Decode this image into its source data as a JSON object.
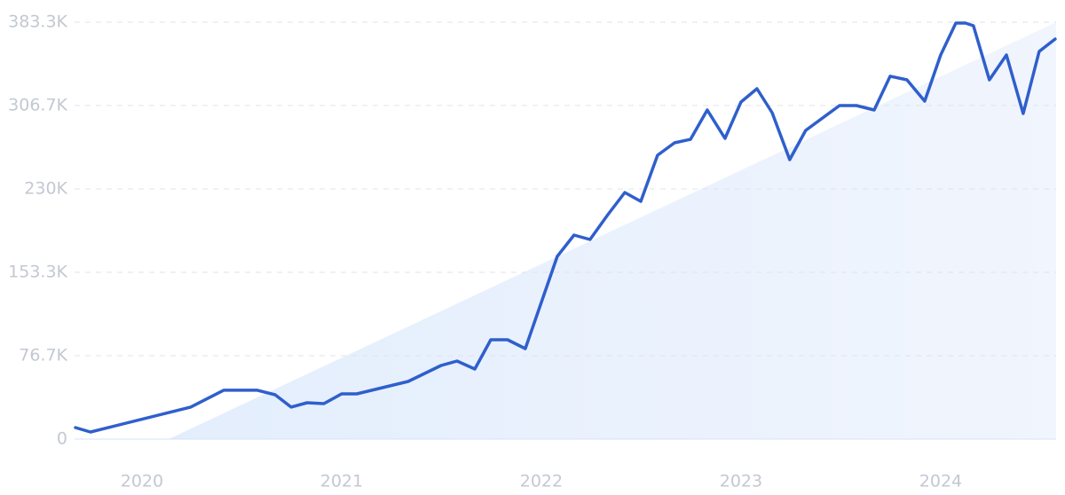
{
  "chart_data": {
    "type": "line",
    "color": "#2f5fcc",
    "grid": true,
    "x": [
      2019.667,
      2019.742,
      2020.244,
      2020.409,
      2020.578,
      2020.667,
      2020.747,
      2020.827,
      2020.911,
      2021.0,
      2021.076,
      2021.333,
      2021.498,
      2021.578,
      2021.667,
      2021.747,
      2021.831,
      2021.92,
      2022.08,
      2022.164,
      2022.244,
      2022.333,
      2022.418,
      2022.498,
      2022.582,
      2022.667,
      2022.747,
      2022.831,
      2022.92,
      2023.0,
      2023.08,
      2023.156,
      2023.244,
      2023.324,
      2023.493,
      2023.578,
      2023.667,
      2023.747,
      2023.831,
      2023.92,
      2024.0,
      2024.076,
      2024.124,
      2024.164,
      2024.244,
      2024.329,
      2024.413,
      2024.493,
      2024.573
    ],
    "values": [
      10600,
      6500,
      29400,
      44900,
      44900,
      40800,
      29400,
      33400,
      32600,
      41600,
      41600,
      53000,
      67700,
      71800,
      64400,
      91300,
      91300,
      83200,
      168000,
      187600,
      183500,
      206300,
      226700,
      218600,
      261000,
      272400,
      275600,
      302600,
      276500,
      309900,
      322100,
      300100,
      256900,
      283800,
      306600,
      306600,
      302600,
      333600,
      330300,
      310700,
      353100,
      382500,
      382500,
      380000,
      330300,
      353100,
      299300,
      356400,
      367800
    ],
    "xlim": [
      2019.667,
      2024.578
    ],
    "xticks": [
      2020,
      2021,
      2022,
      2023,
      2024
    ],
    "ylim": [
      0,
      383300
    ],
    "yticks": [
      0,
      {
        "value": 76700,
        "label": "76.7K"
      },
      {
        "value": 153300,
        "label": "153.3K"
      },
      {
        "value": 230000,
        "label": "230K"
      },
      {
        "value": 306700,
        "label": "306.7K"
      },
      {
        "value": 383300,
        "label": "383.3K"
      }
    ]
  }
}
